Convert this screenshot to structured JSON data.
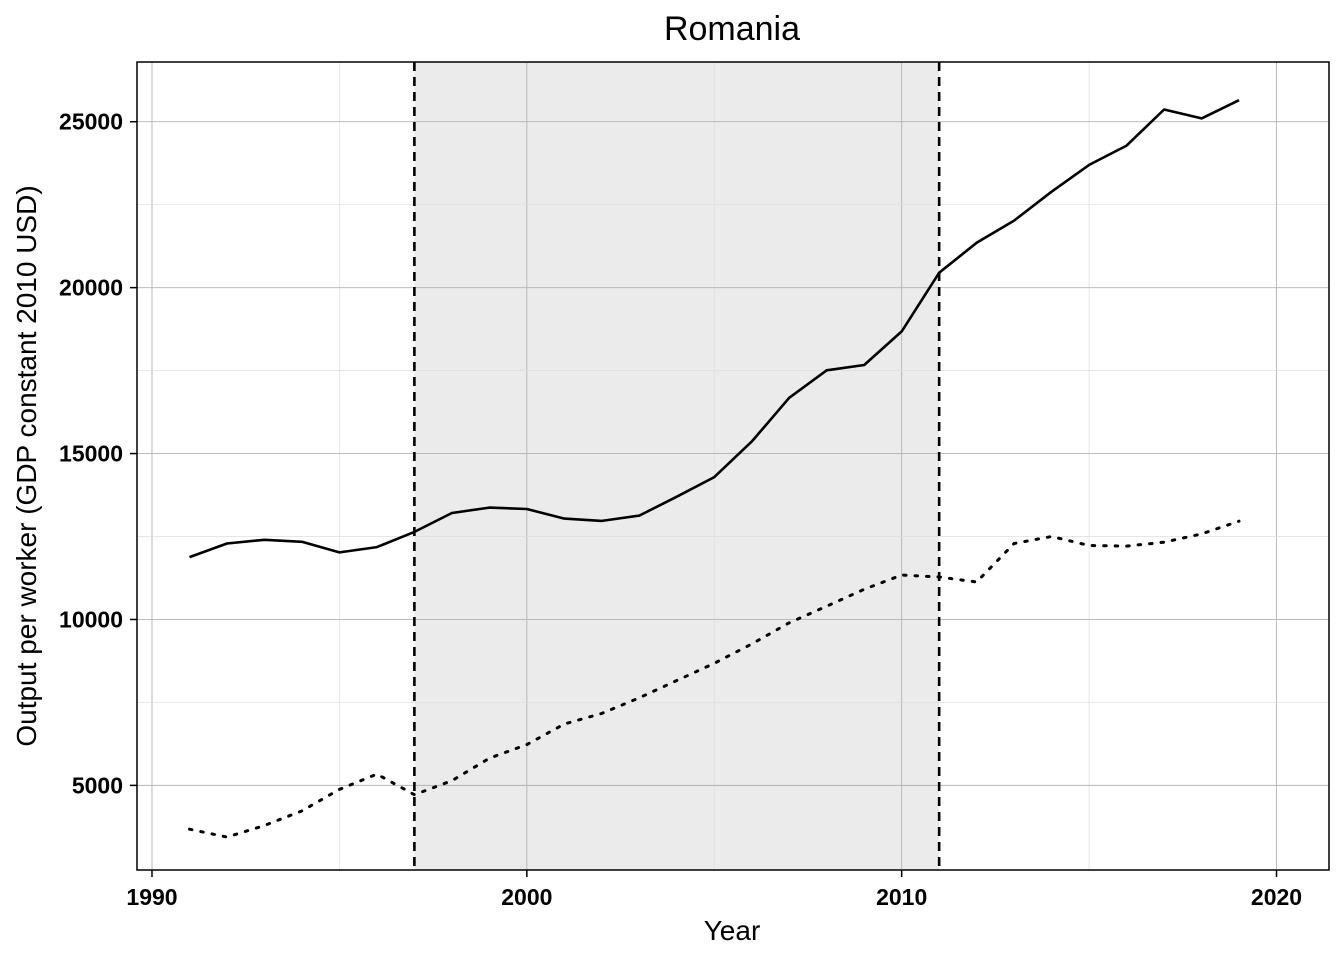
{
  "chart_data": {
    "type": "line",
    "title": "Romania",
    "xlabel": "Year",
    "ylabel": "Output per worker (GDP constant 2010 USD)",
    "xlim": [
      1989.6,
      2021.4
    ],
    "ylim": [
      2450,
      26800
    ],
    "x_ticks": [
      1990,
      2000,
      2010,
      2020
    ],
    "y_ticks": [
      5000,
      10000,
      15000,
      20000,
      25000
    ],
    "grid": true,
    "shaded_period": {
      "start": 1997,
      "end": 2011,
      "color": "#ebebeb"
    },
    "vertical_lines": [
      1997,
      2011
    ],
    "series": [
      {
        "line_style": "solid",
        "color": "#000000",
        "x": [
          1991,
          1992,
          1993,
          1994,
          1995,
          1996,
          1997,
          1998,
          1999,
          2000,
          2001,
          2002,
          2003,
          2004,
          2005,
          2006,
          2007,
          2008,
          2009,
          2010,
          2011,
          2012,
          2013,
          2014,
          2015,
          2016,
          2017,
          2018,
          2019
        ],
        "values": [
          11880,
          12290,
          12400,
          12340,
          12020,
          12180,
          12640,
          13210,
          13370,
          13330,
          13040,
          12970,
          13130,
          13700,
          14290,
          15360,
          16680,
          17510,
          17670,
          18680,
          20450,
          21350,
          22020,
          22890,
          23700,
          24280,
          25370,
          25100,
          25650
        ]
      },
      {
        "line_style": "dotted",
        "color": "#000000",
        "x": [
          1991,
          1992,
          1993,
          1994,
          1995,
          1996,
          1997,
          1998,
          1999,
          2000,
          2001,
          2002,
          2003,
          2004,
          2005,
          2006,
          2007,
          2008,
          2009,
          2010,
          2011,
          2012,
          2013,
          2014,
          2015,
          2016,
          2017,
          2018,
          2019
        ],
        "values": [
          3680,
          3440,
          3790,
          4230,
          4880,
          5340,
          4720,
          5140,
          5820,
          6230,
          6850,
          7170,
          7640,
          8160,
          8680,
          9260,
          9900,
          10400,
          10910,
          11340,
          11280,
          11130,
          12290,
          12500,
          12230,
          12210,
          12330,
          12580,
          12960
        ]
      }
    ]
  }
}
